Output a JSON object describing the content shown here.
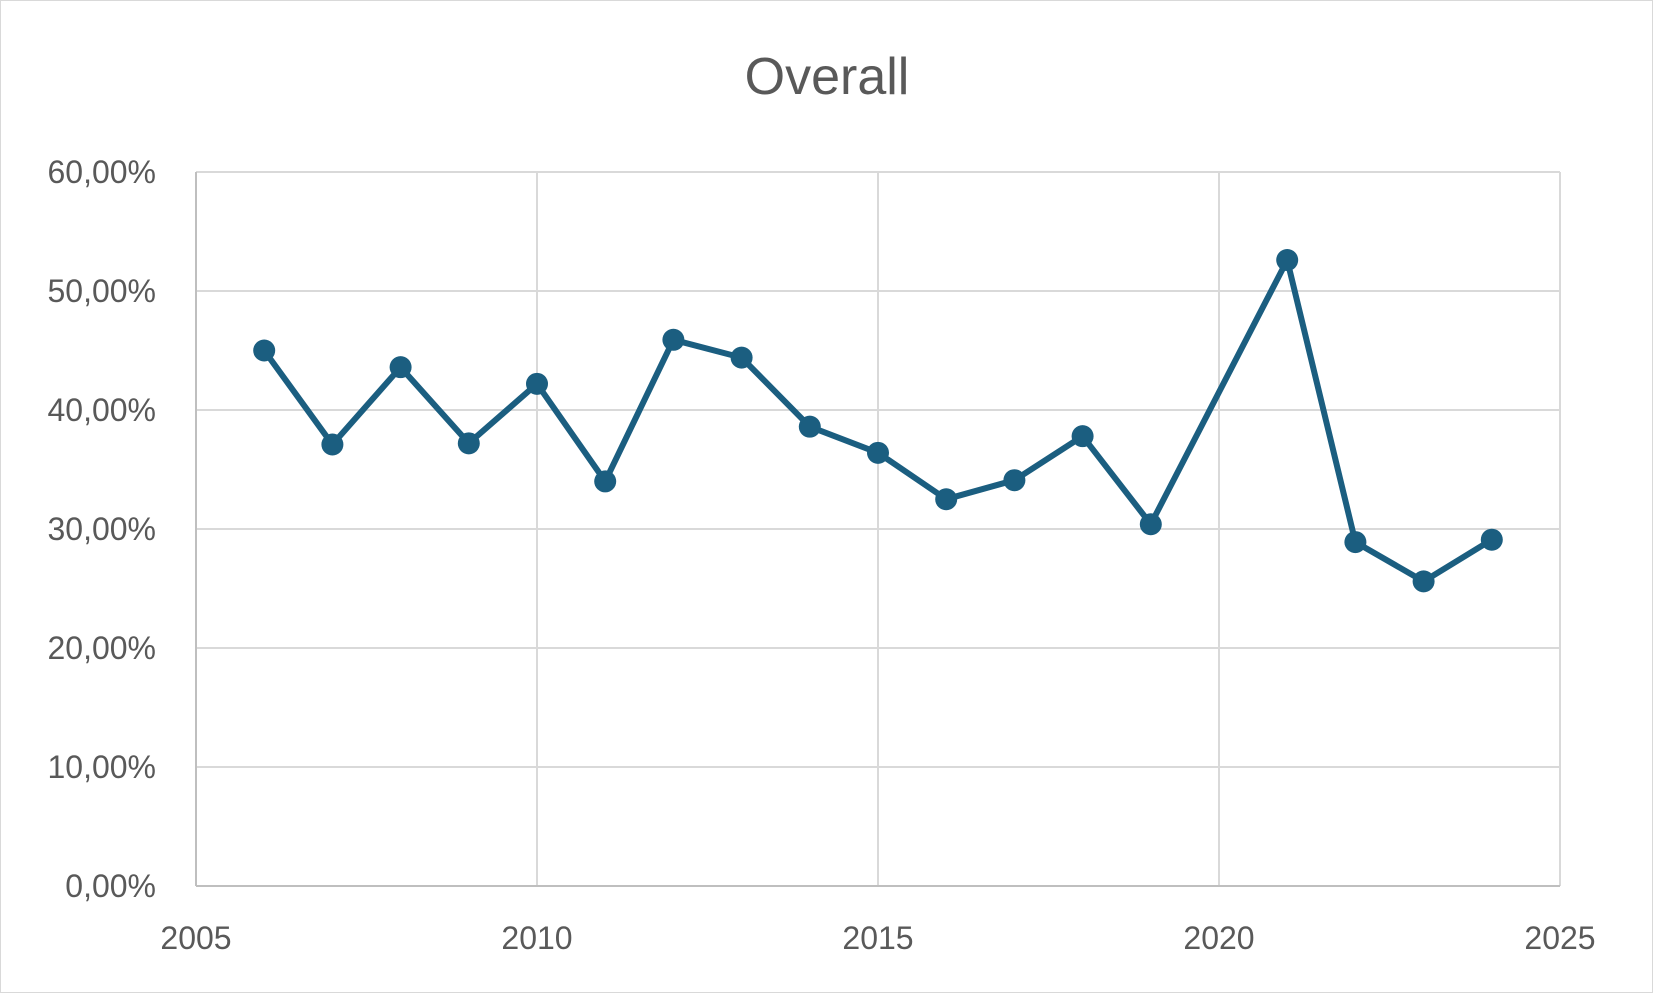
{
  "chart_data": {
    "type": "scatter",
    "title": "Overall",
    "xlabel": "",
    "ylabel": "",
    "xlim": [
      2005,
      2025
    ],
    "ylim": [
      0,
      0.6
    ],
    "x_ticks": [
      "2005",
      "2010",
      "2015",
      "2020",
      "2025"
    ],
    "y_ticks": [
      "0,00%",
      "10,00%",
      "20,00%",
      "30,00%",
      "40,00%",
      "50,00%",
      "60,00%"
    ],
    "grid": true,
    "legend": "none",
    "line_color": "#1b5e80",
    "series": [
      {
        "x": [
          2006,
          2007,
          2008,
          2009,
          2010,
          2011,
          2012,
          2013,
          2014,
          2015,
          2016,
          2017,
          2018,
          2019,
          2021,
          2022,
          2023,
          2024
        ],
        "y": [
          0.45,
          0.371,
          0.436,
          0.372,
          0.422,
          0.34,
          0.459,
          0.444,
          0.386,
          0.364,
          0.325,
          0.341,
          0.378,
          0.304,
          0.526,
          0.289,
          0.256,
          0.291
        ]
      }
    ]
  }
}
